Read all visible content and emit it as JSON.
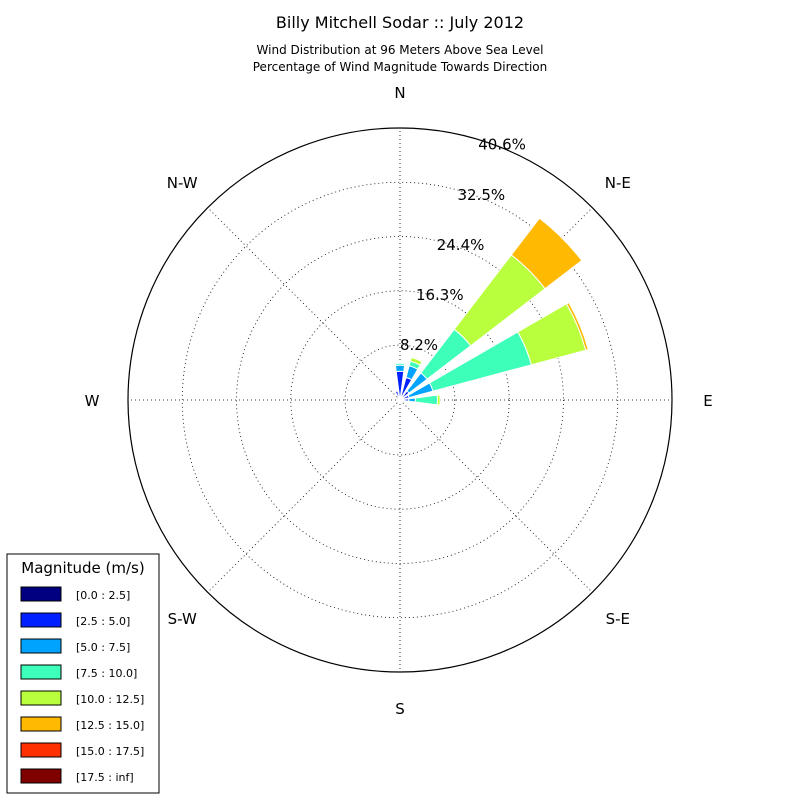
{
  "chart_data": {
    "type": "windrose",
    "title": "Billy Mitchell Sodar :: July 2012",
    "subtitle_lines": [
      "Wind Distribution at 96 Meters Above Sea Level",
      "Percentage of Wind Magnitude Towards Direction"
    ],
    "directions": [
      "N",
      "N-E",
      "E",
      "S-E",
      "S",
      "S-W",
      "W",
      "N-W"
    ],
    "radial_ticks": [
      "8.2%",
      "16.3%",
      "24.4%",
      "32.5%",
      "40.6%"
    ],
    "radial_tick_values": [
      8.2,
      16.3,
      24.4,
      32.5,
      40.6
    ],
    "rmax": 40.6,
    "grid": true,
    "legend": {
      "title": "Magnitude (m/s)",
      "placement": "bottom-left",
      "entries": [
        "[0.0 : 2.5]",
        "[2.5 : 5.0]",
        "[5.0 : 7.5]",
        "[7.5 : 10.0]",
        "[10.0 : 12.5]",
        "[12.5 : 15.0]",
        "[15.0 : 17.5]",
        "[17.5 : inf]"
      ],
      "colors": [
        "#000080",
        "#0020ff",
        "#00a4ff",
        "#3dffb9",
        "#b9ff3d",
        "#ffb900",
        "#ff3000",
        "#800000"
      ]
    },
    "bin_width_deg": 15,
    "bins": [
      {
        "direction_deg": 0,
        "cumulative": [
          0.3,
          4.3,
          5.2,
          5.5,
          5.6
        ]
      },
      {
        "direction_deg": 22.5,
        "cumulative": [
          0.3,
          3.5,
          5.3,
          6.0,
          6.6,
          6.7
        ]
      },
      {
        "direction_deg": 45,
        "cumulative": [
          0.3,
          1.7,
          5.1,
          13.3,
          27.3,
          34.2
        ]
      },
      {
        "direction_deg": 67.5,
        "cumulative": [
          0.3,
          1.4,
          5.1,
          20.3,
          28.7,
          29.1,
          29.2
        ]
      },
      {
        "direction_deg": 90,
        "cumulative": [
          0.3,
          1.3,
          2.3,
          5.6,
          6.0
        ]
      },
      {
        "direction_deg": 112.5,
        "cumulative": [
          0.2,
          0.4
        ]
      },
      {
        "direction_deg": 135,
        "cumulative": [
          0.2
        ]
      },
      {
        "direction_deg": 157.5,
        "cumulative": [
          0.2
        ]
      },
      {
        "direction_deg": 180,
        "cumulative": [
          0.2
        ]
      },
      {
        "direction_deg": 202.5,
        "cumulative": [
          0.2
        ]
      },
      {
        "direction_deg": 225,
        "cumulative": [
          0.2
        ]
      },
      {
        "direction_deg": 247.5,
        "cumulative": [
          0.2
        ]
      },
      {
        "direction_deg": 270,
        "cumulative": [
          0.2
        ]
      },
      {
        "direction_deg": 292.5,
        "cumulative": [
          0.2
        ]
      },
      {
        "direction_deg": 315,
        "cumulative": [
          0.3
        ]
      },
      {
        "direction_deg": 337.5,
        "cumulative": [
          0.3,
          1.4
        ]
      }
    ]
  }
}
